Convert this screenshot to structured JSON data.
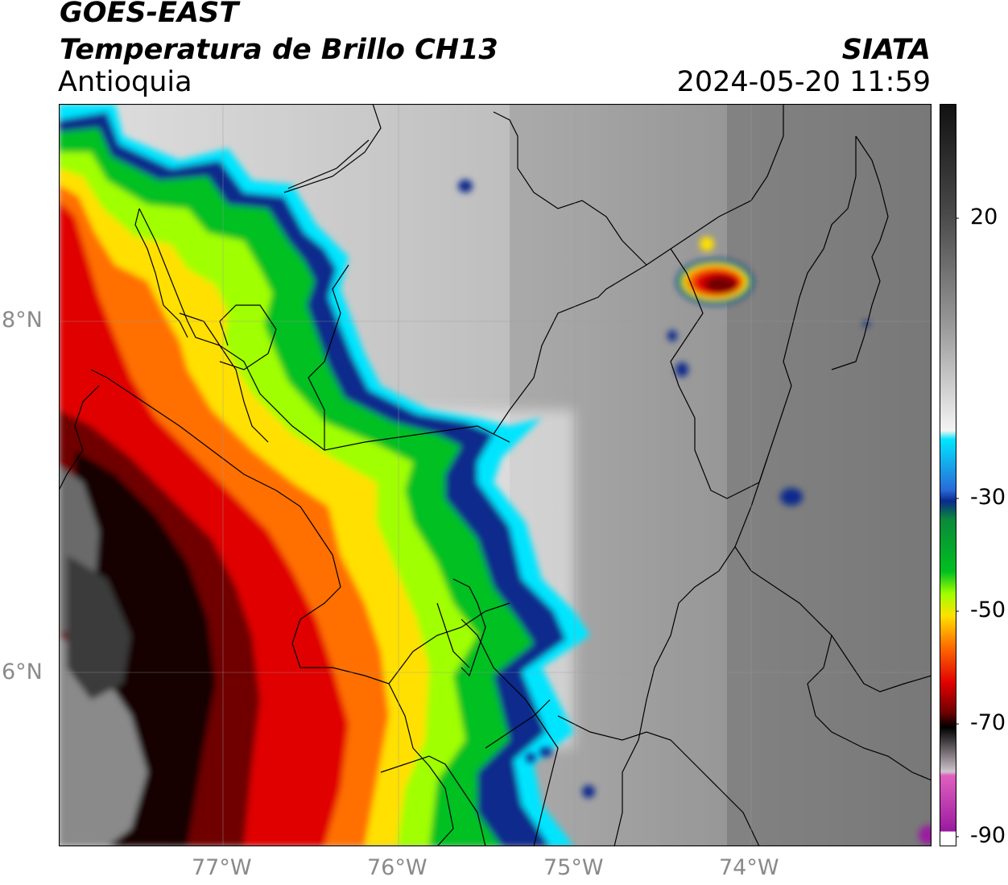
{
  "header": {
    "satellite": "GOES-EAST",
    "product": "Temperatura de Brillo CH13",
    "region": "Antioquia",
    "brand": "SIATA",
    "datetime": "2024-05-20 11:59"
  },
  "axes": {
    "lat_labels": [
      "8°N",
      "6°N"
    ],
    "lon_labels": [
      "77°W",
      "76°W",
      "75°W",
      "74°W"
    ]
  },
  "colorbar": {
    "ticks": [
      "20",
      "-30",
      "-50",
      "-70",
      "-90"
    ],
    "colors": {
      "warm_gray": "#3a3a3a",
      "light": "#f2f2f2",
      "cyan": "#00e5ff",
      "blue": "#0a2a8c",
      "green": "#00c020",
      "lime": "#a0ff00",
      "yellow": "#ffe000",
      "orange": "#ff7000",
      "red": "#e00000",
      "darkred": "#700000",
      "black": "#000000",
      "magenta": "#9a1aa0"
    }
  }
}
